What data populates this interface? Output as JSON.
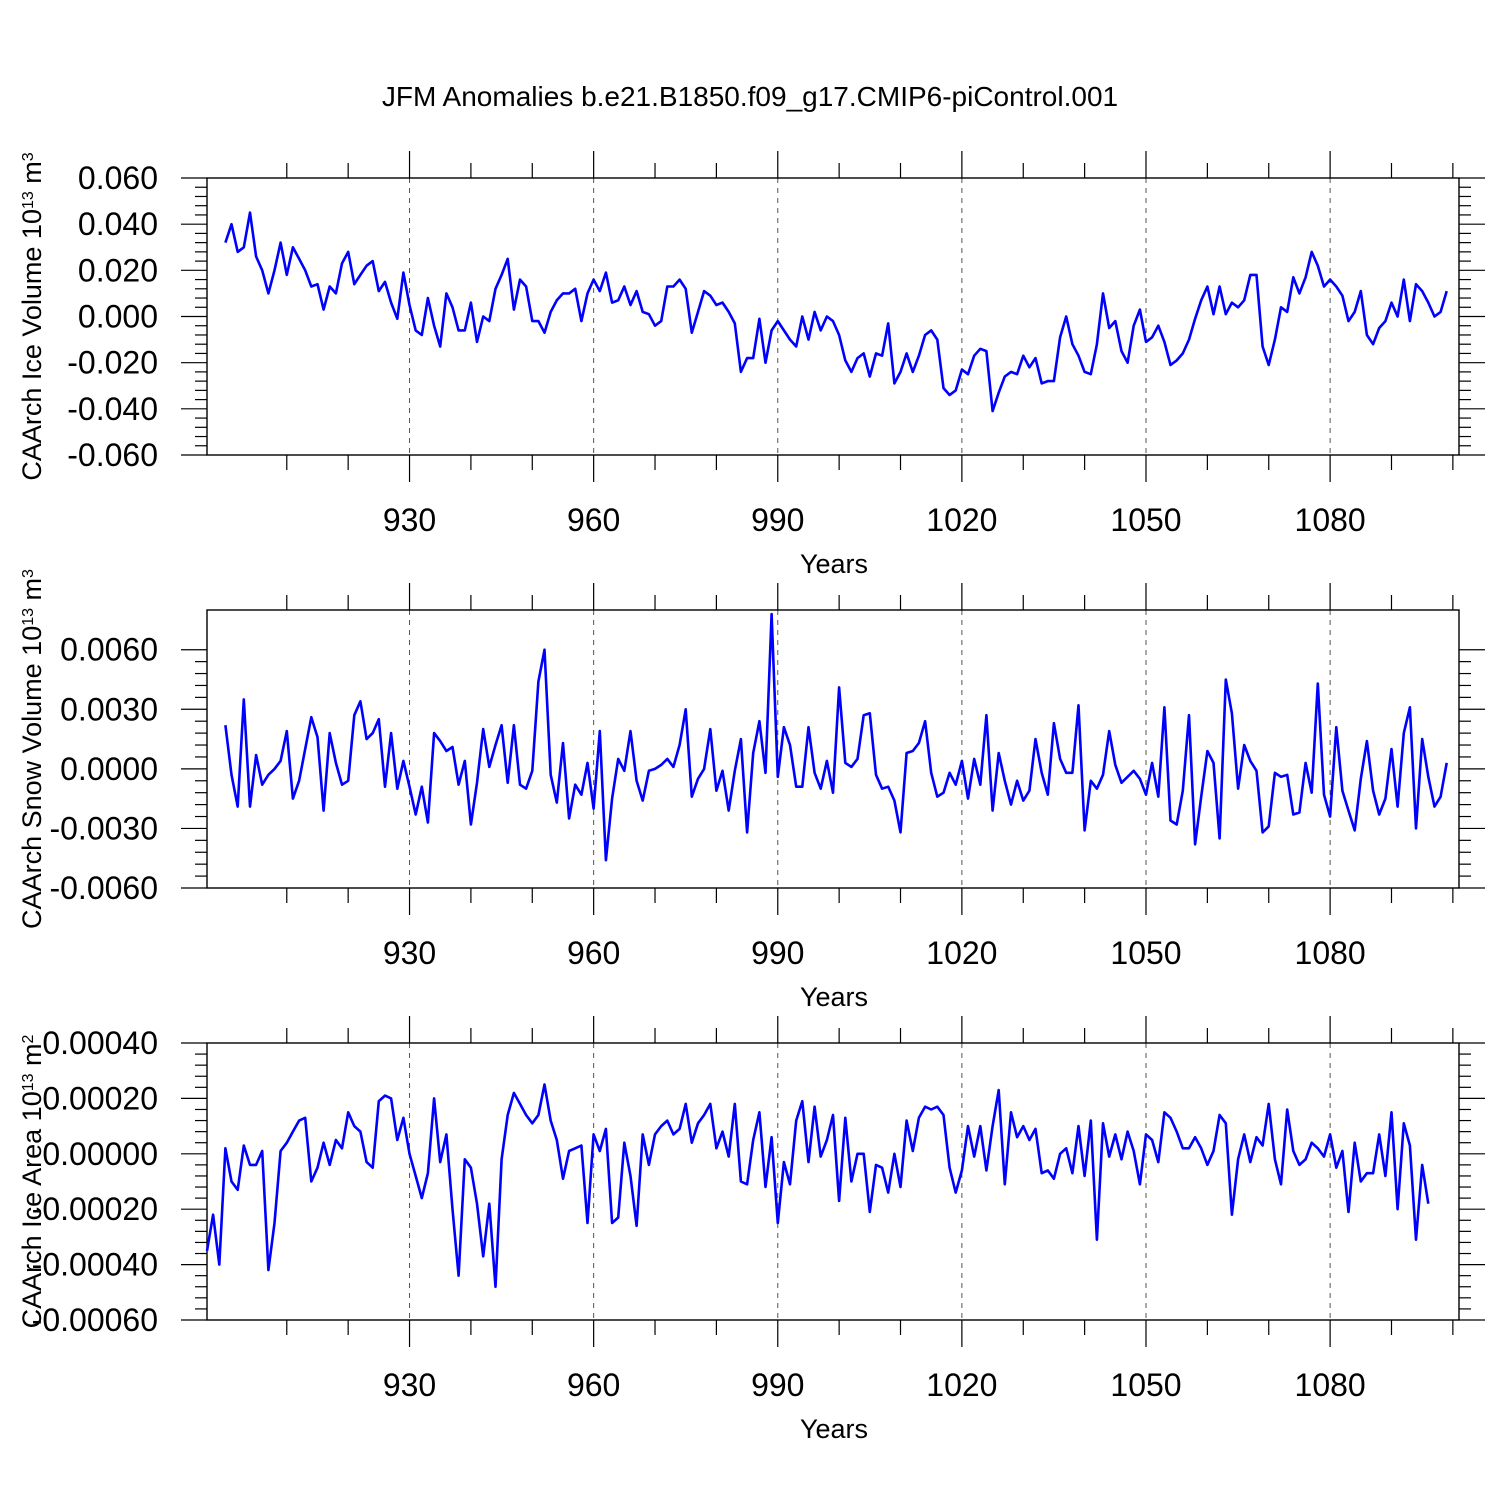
{
  "chart_data": [
    {
      "type": "line",
      "title": "JFM Anomalies b.e21.B1850.f09_g17.CMIP6-piControl.001",
      "xlabel": "Years",
      "ylabel": "CAArch Ice Volume 10",
      "ylabel_exp": "13",
      "ylabel_unit": " m",
      "ylabel_unit_exp": "3",
      "xlim": [
        897,
        1101
      ],
      "ylim": [
        -0.06,
        0.06
      ],
      "x_ticks": [
        930,
        960,
        990,
        1020,
        1050,
        1080
      ],
      "x_tick_labels": [
        "930",
        "960",
        "990",
        "1020",
        "1050",
        "1080"
      ],
      "y_ticks": [
        -0.06,
        -0.04,
        -0.02,
        0,
        0.02,
        0.04,
        0.06
      ],
      "y_tick_labels": [
        "-0.060",
        "-0.040",
        "-0.020",
        "0.000",
        "0.020",
        "0.040",
        "0.060"
      ],
      "x_start": 900,
      "series": [
        {
          "name": "CAArch Ice Volume",
          "color": "#0000ff",
          "values": [
            0.032,
            0.04,
            0.028,
            0.03,
            0.045,
            0.026,
            0.02,
            0.01,
            0.02,
            0.032,
            0.018,
            0.03,
            0.025,
            0.02,
            0.013,
            0.014,
            0.003,
            0.013,
            0.01,
            0.023,
            0.028,
            0.014,
            0.018,
            0.022,
            0.024,
            0.011,
            0.015,
            0.006,
            -0.001,
            0.019,
            0.005,
            -0.006,
            -0.008,
            0.008,
            -0.004,
            -0.013,
            0.01,
            0.004,
            -0.006,
            -0.006,
            0.006,
            -0.011,
            0,
            -0.002,
            0.012,
            0.018,
            0.025,
            0.003,
            0.016,
            0.013,
            -0.002,
            -0.002,
            -0.007,
            0.002,
            0.007,
            0.01,
            0.01,
            0.012,
            -0.002,
            0.01,
            0.016,
            0.011,
            0.019,
            0.006,
            0.007,
            0.013,
            0.005,
            0.011,
            0.002,
            0.001,
            -0.004,
            -0.002,
            0.013,
            0.013,
            0.016,
            0.012,
            -0.007,
            0.002,
            0.011,
            0.009,
            0.005,
            0.006,
            0.002,
            -0.003,
            -0.024,
            -0.018,
            -0.018,
            -0.001,
            -0.02,
            -0.006,
            -0.002,
            -0.006,
            -0.01,
            -0.013,
            0,
            -0.01,
            0.002,
            -0.006,
            0,
            -0.002,
            -0.008,
            -0.019,
            -0.024,
            -0.018,
            -0.016,
            -0.026,
            -0.016,
            -0.017,
            -0.003,
            -0.029,
            -0.024,
            -0.016,
            -0.024,
            -0.017,
            -0.008,
            -0.006,
            -0.01,
            -0.031,
            -0.034,
            -0.032,
            -0.023,
            -0.025,
            -0.017,
            -0.014,
            -0.015,
            -0.041,
            -0.033,
            -0.026,
            -0.024,
            -0.025,
            -0.017,
            -0.022,
            -0.018,
            -0.029,
            -0.028,
            -0.028,
            -0.009,
            0,
            -0.012,
            -0.017,
            -0.024,
            -0.025,
            -0.012,
            0.01,
            -0.005,
            -0.002,
            -0.015,
            -0.02,
            -0.004,
            0.003,
            -0.011,
            -0.009,
            -0.004,
            -0.011,
            -0.021,
            -0.019,
            -0.016,
            -0.01,
            -0.001,
            0.007,
            0.013,
            0.001,
            0.013,
            0.001,
            0.006,
            0.004,
            0.007,
            0.018,
            0.018,
            -0.013,
            -0.021,
            -0.01,
            0.004,
            0.002,
            0.017,
            0.01,
            0.017,
            0.028,
            0.022,
            0.013,
            0.016,
            0.013,
            0.009,
            -0.002,
            0.002,
            0.011,
            -0.008,
            -0.012,
            -0.005,
            -0.002,
            0.006,
            0,
            0.016,
            -0.002,
            0.014,
            0.011,
            0.006,
            0,
            0.002,
            0.011
          ]
        }
      ]
    },
    {
      "type": "line",
      "xlabel": "Years",
      "ylabel": "CAArch Snow Volume 10",
      "ylabel_exp": "13",
      "ylabel_unit": " m",
      "ylabel_unit_exp": "3",
      "xlim": [
        897,
        1101
      ],
      "ylim": [
        -0.006,
        0.008
      ],
      "x_ticks": [
        930,
        960,
        990,
        1020,
        1050,
        1080
      ],
      "x_tick_labels": [
        "930",
        "960",
        "990",
        "1020",
        "1050",
        "1080"
      ],
      "y_ticks": [
        -0.006,
        -0.003,
        0,
        0.003,
        0.006
      ],
      "y_tick_labels": [
        "-0.0060",
        "-0.0030",
        "0.0000",
        "0.0030",
        "0.0060"
      ],
      "x_start": 900,
      "series": [
        {
          "name": "CAArch Snow Volume",
          "color": "#0000ff",
          "values": [
            0.0022,
            -0.0003,
            -0.0019,
            0.0035,
            -0.0019,
            0.0007,
            -0.0008,
            -0.0003,
            0,
            0.0004,
            0.0019,
            -0.0015,
            -0.0006,
            0.001,
            0.0026,
            0.0016,
            -0.0021,
            0.0018,
            0.0003,
            -0.0008,
            -0.0006,
            0.0027,
            0.0034,
            0.0015,
            0.0018,
            0.0025,
            -0.0009,
            0.0018,
            -0.001,
            0.0004,
            -0.0009,
            -0.0023,
            -0.0009,
            -0.0027,
            0.0018,
            0.0014,
            0.0009,
            0.0011,
            -0.0008,
            0.0004,
            -0.0028,
            -0.0007,
            0.002,
            0.0001,
            0.0012,
            0.0022,
            -0.0007,
            0.0022,
            -0.0008,
            -0.001,
            -0.0001,
            0.0044,
            0.006,
            -0.0003,
            -0.0017,
            0.0013,
            -0.0025,
            -0.0008,
            -0.0013,
            0.0003,
            -0.002,
            0.0019,
            -0.0046,
            -0.0015,
            0.0005,
            -0.0001,
            0.0019,
            -0.0006,
            -0.0016,
            -0.0001,
            0,
            0.0002,
            0.0005,
            0.0001,
            0.0012,
            0.003,
            -0.0014,
            -0.0005,
            0,
            0.002,
            -0.0011,
            -0.0001,
            -0.0021,
            -0.0001,
            0.0015,
            -0.0032,
            0.0008,
            0.0024,
            -0.0002,
            0.0078,
            -0.0004,
            0.0021,
            0.0012,
            -0.0009,
            -0.0009,
            0.0021,
            -0.0002,
            -0.001,
            0.0004,
            -0.0012,
            0.0041,
            0.0003,
            0.0001,
            0.0005,
            0.0027,
            0.0028,
            -0.0003,
            -0.001,
            -0.0009,
            -0.0016,
            -0.0032,
            0.0008,
            0.0009,
            0.0013,
            0.0024,
            -0.0002,
            -0.0014,
            -0.0012,
            -0.0002,
            -0.0008,
            0.0004,
            -0.0015,
            0.0005,
            -0.0008,
            0.0027,
            -0.0021,
            0.0008,
            -0.0006,
            -0.0018,
            -0.0006,
            -0.0016,
            -0.0011,
            0.0015,
            -0.0002,
            -0.0013,
            0.0023,
            0.0005,
            -0.0002,
            -0.0002,
            0.0032,
            -0.0031,
            -0.0006,
            -0.001,
            -0.0003,
            0.0019,
            0.0002,
            -0.0007,
            -0.0004,
            -0.0001,
            -0.0005,
            -0.0013,
            0.0003,
            -0.0014,
            0.0031,
            -0.0026,
            -0.0028,
            -0.0011,
            0.0027,
            -0.0038,
            -0.0014,
            0.0009,
            0.0003,
            -0.0035,
            0.0045,
            0.0028,
            -0.001,
            0.0012,
            0.0004,
            -0.0001,
            -0.0032,
            -0.0029,
            -0.0002,
            -0.0004,
            -0.0003,
            -0.0023,
            -0.0022,
            0.0003,
            -0.0012,
            0.0043,
            -0.0013,
            -0.0024,
            0.0021,
            -0.0011,
            -0.0021,
            -0.0031,
            -0.0005,
            0.0014,
            -0.0011,
            -0.0023,
            -0.0015,
            0.001,
            -0.0019,
            0.0018,
            0.0031,
            -0.003,
            0.0015,
            -0.0004,
            -0.0019,
            -0.0014,
            0.0003
          ]
        }
      ]
    },
    {
      "type": "line",
      "xlabel": "Years",
      "ylabel": "CAArch Ice Area 10",
      "ylabel_exp": "13",
      "ylabel_unit": " m",
      "ylabel_unit_exp": "2",
      "xlim": [
        897,
        1101
      ],
      "ylim": [
        -0.0006,
        0.0004
      ],
      "x_ticks": [
        930,
        960,
        990,
        1020,
        1050,
        1080
      ],
      "x_tick_labels": [
        "930",
        "960",
        "990",
        "1020",
        "1050",
        "1080"
      ],
      "y_ticks": [
        -0.0006,
        -0.0004,
        -0.0002,
        0,
        0.0002,
        0.0004
      ],
      "y_tick_labels": [
        "-0.00060",
        "-0.00040",
        "-0.00020",
        "0.00000",
        "0.00020",
        "0.00040"
      ],
      "x_start": 897,
      "series": [
        {
          "name": "CAArch Ice Area",
          "color": "#0000ff",
          "values": [
            -0.00035,
            -0.00022,
            -0.0004,
            2e-05,
            -0.0001,
            -0.00013,
            3e-05,
            -4e-05,
            -4e-05,
            1e-05,
            -0.00042,
            -0.00025,
            1e-05,
            4e-05,
            8e-05,
            0.00012,
            0.00013,
            -0.0001,
            -5e-05,
            4e-05,
            -4e-05,
            5e-05,
            2e-05,
            0.00015,
            0.0001,
            8e-05,
            -3e-05,
            -5e-05,
            0.00019,
            0.00021,
            0.0002,
            5e-05,
            0.00013,
            0,
            -8e-05,
            -0.00016,
            -7e-05,
            0.0002,
            -3e-05,
            7e-05,
            -0.0002,
            -0.00044,
            -2e-05,
            -5e-05,
            -0.00018,
            -0.00037,
            -0.00018,
            -0.00048,
            -2e-05,
            0.00014,
            0.00022,
            0.00018,
            0.00014,
            0.00011,
            0.00014,
            0.00025,
            0.00012,
            5e-05,
            -9e-05,
            1e-05,
            2e-05,
            3e-05,
            -0.00025,
            7e-05,
            1e-05,
            9e-05,
            -0.00025,
            -0.00023,
            4e-05,
            -8e-05,
            -0.00026,
            7e-05,
            -4e-05,
            7e-05,
            0.0001,
            0.00012,
            7e-05,
            9e-05,
            0.00018,
            4e-05,
            0.00011,
            0.00014,
            0.00018,
            2e-05,
            8e-05,
            -1e-05,
            0.00018,
            -0.0001,
            -0.00011,
            5e-05,
            0.00015,
            -0.00012,
            6e-05,
            -0.00025,
            -3e-05,
            -0.00011,
            0.00012,
            0.00019,
            -3e-05,
            0.00017,
            -1e-05,
            5e-05,
            0.00014,
            -0.00017,
            0.00013,
            -0.0001,
            0,
            0,
            -0.00021,
            -4e-05,
            -5e-05,
            -0.00014,
            0,
            -0.00012,
            0.00012,
            1e-05,
            0.00013,
            0.00017,
            0.00016,
            0.00017,
            0.00014,
            -5e-05,
            -0.00014,
            -6e-05,
            0.0001,
            -1e-05,
            0.0001,
            -6e-05,
            0.0001,
            0.00023,
            -0.00011,
            0.00015,
            6e-05,
            0.0001,
            5e-05,
            9e-05,
            -7e-05,
            -6e-05,
            -9e-05,
            0,
            2e-05,
            -7e-05,
            0.0001,
            -8e-05,
            0.00012,
            -0.00031,
            0.00011,
            -1e-05,
            7e-05,
            -2e-05,
            8e-05,
            1e-05,
            -0.00011,
            7e-05,
            5e-05,
            -3e-05,
            0.00015,
            0.00013,
            8e-05,
            2e-05,
            2e-05,
            6e-05,
            2e-05,
            -4e-05,
            1e-05,
            0.00014,
            0.00011,
            -0.00022,
            -2e-05,
            7e-05,
            -3e-05,
            6e-05,
            3e-05,
            0.00018,
            -2e-05,
            -0.00011,
            0.00016,
            1e-05,
            -4e-05,
            -2e-05,
            4e-05,
            2e-05,
            -1e-05,
            7e-05,
            -5e-05,
            1e-05,
            -0.00021,
            4e-05,
            -0.0001,
            -7e-05,
            -7e-05,
            7e-05,
            -8e-05,
            0.00015,
            -0.0002,
            0.00011,
            3e-05,
            -0.00031,
            -4e-05,
            -0.00018
          ]
        }
      ]
    }
  ]
}
